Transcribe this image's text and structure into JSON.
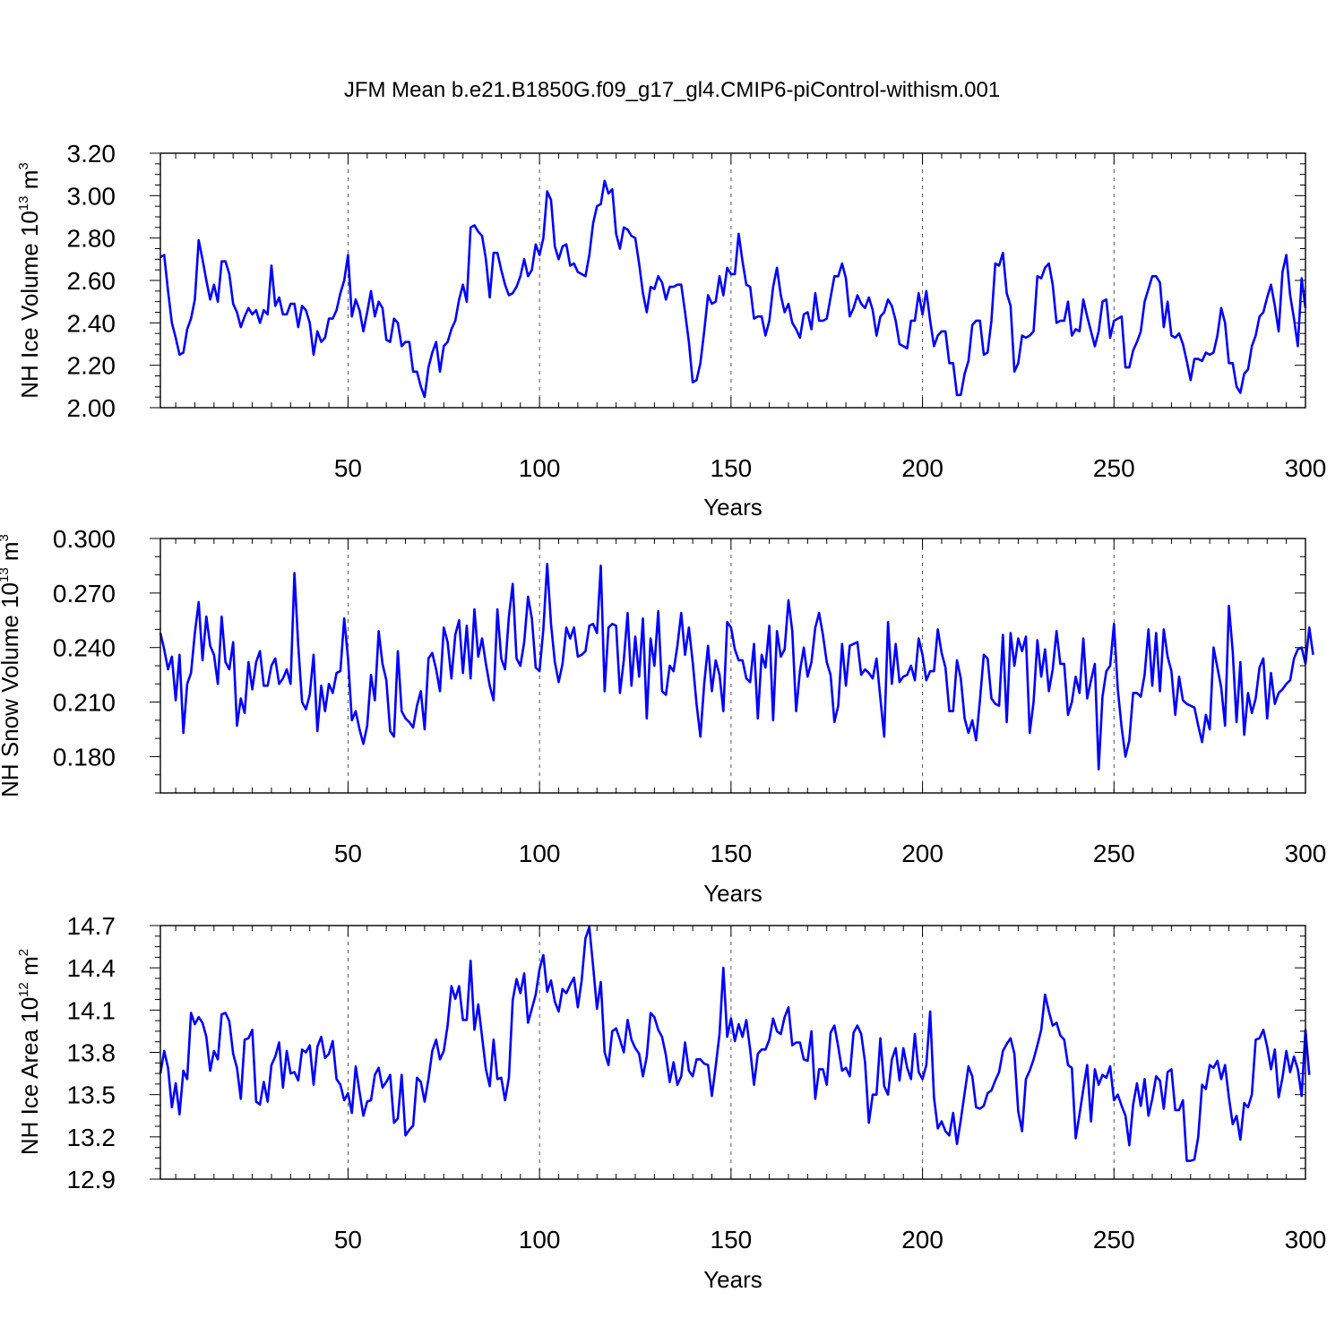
{
  "title": "JFM Mean b.e21.B1850G.f09_g17_gl4.CMIP6-piControl-withism.001",
  "series_color": "#0000ff",
  "chart_data": [
    {
      "type": "line",
      "name": "NH Ice Volume",
      "ylabel": {
        "main": "NH Ice Volume 10",
        "exp": "13",
        "unit": " m",
        "unit_exp": "3"
      },
      "xlabel": "Years",
      "xlim": [
        1,
        300
      ],
      "ylim": [
        2.0,
        3.2
      ],
      "x_ticks": [
        50,
        100,
        150,
        200,
        250,
        300
      ],
      "y_ticks": [
        "2.00",
        "2.20",
        "2.40",
        "2.60",
        "2.80",
        "3.00",
        "3.20"
      ],
      "y_tick_values": [
        2.0,
        2.2,
        2.4,
        2.6,
        2.8,
        3.0,
        3.2
      ],
      "x": "years 1-300",
      "values": [
        2.71,
        2.72,
        2.55,
        2.4,
        2.33,
        2.25,
        2.26,
        2.37,
        2.42,
        2.51,
        2.79,
        2.7,
        2.6,
        2.51,
        2.58,
        2.5,
        2.69,
        2.69,
        2.63,
        2.49,
        2.45,
        2.38,
        2.43,
        2.47,
        2.44,
        2.46,
        2.4,
        2.46,
        2.44,
        2.67,
        2.48,
        2.52,
        2.44,
        2.44,
        2.49,
        2.49,
        2.38,
        2.48,
        2.46,
        2.4,
        2.25,
        2.36,
        2.31,
        2.33,
        2.42,
        2.42,
        2.46,
        2.54,
        2.6,
        2.72,
        2.43,
        2.51,
        2.46,
        2.36,
        2.45,
        2.55,
        2.43,
        2.5,
        2.47,
        2.32,
        2.31,
        2.42,
        2.4,
        2.29,
        2.31,
        2.31,
        2.17,
        2.17,
        2.1,
        2.05,
        2.19,
        2.26,
        2.31,
        2.17,
        2.29,
        2.31,
        2.37,
        2.41,
        2.51,
        2.58,
        2.5,
        2.85,
        2.86,
        2.83,
        2.81,
        2.7,
        2.52,
        2.73,
        2.73,
        2.65,
        2.58,
        2.53,
        2.54,
        2.57,
        2.62,
        2.7,
        2.62,
        2.65,
        2.77,
        2.72,
        2.8,
        3.02,
        2.98,
        2.76,
        2.7,
        2.76,
        2.77,
        2.67,
        2.68,
        2.64,
        2.63,
        2.62,
        2.72,
        2.87,
        2.95,
        2.96,
        3.07,
        3.01,
        3.03,
        2.82,
        2.75,
        2.85,
        2.84,
        2.81,
        2.8,
        2.68,
        2.54,
        2.45,
        2.57,
        2.56,
        2.62,
        2.59,
        2.51,
        2.57,
        2.57,
        2.58,
        2.58,
        2.45,
        2.31,
        2.12,
        2.13,
        2.21,
        2.36,
        2.53,
        2.49,
        2.5,
        2.62,
        2.53,
        2.66,
        2.63,
        2.63,
        2.82,
        2.69,
        2.58,
        2.57,
        2.42,
        2.43,
        2.43,
        2.34,
        2.41,
        2.57,
        2.66,
        2.53,
        2.45,
        2.49,
        2.4,
        2.37,
        2.33,
        2.44,
        2.45,
        2.37,
        2.54,
        2.41,
        2.41,
        2.42,
        2.52,
        2.62,
        2.62,
        2.68,
        2.61,
        2.43,
        2.47,
        2.53,
        2.49,
        2.47,
        2.52,
        2.46,
        2.34,
        2.43,
        2.45,
        2.51,
        2.48,
        2.41,
        2.3,
        2.29,
        2.28,
        2.41,
        2.41,
        2.54,
        2.44,
        2.55,
        2.41,
        2.29,
        2.34,
        2.36,
        2.36,
        2.21,
        2.21,
        2.06,
        2.06,
        2.16,
        2.22,
        2.39,
        2.41,
        2.41,
        2.25,
        2.26,
        2.41,
        2.68,
        2.67,
        2.73,
        2.54,
        2.48,
        2.17,
        2.21,
        2.34,
        2.33,
        2.34,
        2.36,
        2.62,
        2.61,
        2.66,
        2.68,
        2.58,
        2.4,
        2.41,
        2.41,
        2.5,
        2.34,
        2.37,
        2.36,
        2.51,
        2.43,
        2.36,
        2.29,
        2.36,
        2.5,
        2.51,
        2.33,
        2.41,
        2.42,
        2.43,
        2.19,
        2.19,
        2.27,
        2.31,
        2.36,
        2.5,
        2.56,
        2.62,
        2.62,
        2.59,
        2.38,
        2.5,
        2.34,
        2.33,
        2.35,
        2.3,
        2.22,
        2.13,
        2.23,
        2.23,
        2.22,
        2.26,
        2.25,
        2.26,
        2.34,
        2.47,
        2.4,
        2.21,
        2.21,
        2.1,
        2.07,
        2.16,
        2.18,
        2.29,
        2.34,
        2.43,
        2.45,
        2.52,
        2.58,
        2.48,
        2.36,
        2.64,
        2.72,
        2.53,
        2.42,
        2.29,
        2.61,
        2.47
      ]
    },
    {
      "type": "line",
      "name": "NH Snow Volume",
      "ylabel": {
        "main": "NH Snow Volume 10",
        "exp": "13",
        "unit": " m",
        "unit_exp": "3"
      },
      "xlabel": "Years",
      "xlim": [
        1,
        300
      ],
      "ylim": [
        0.16,
        0.3
      ],
      "x_ticks": [
        50,
        100,
        150,
        200,
        250,
        300
      ],
      "y_ticks": [
        "0.180",
        "0.210",
        "0.240",
        "0.270",
        "0.300"
      ],
      "y_tick_values": [
        0.18,
        0.21,
        0.24,
        0.27,
        0.3
      ],
      "x": "years 1-300",
      "values": [
        0.248,
        0.239,
        0.228,
        0.235,
        0.211,
        0.236,
        0.193,
        0.22,
        0.226,
        0.248,
        0.265,
        0.233,
        0.257,
        0.241,
        0.236,
        0.22,
        0.257,
        0.232,
        0.228,
        0.243,
        0.197,
        0.212,
        0.204,
        0.232,
        0.217,
        0.232,
        0.238,
        0.219,
        0.219,
        0.23,
        0.234,
        0.22,
        0.223,
        0.228,
        0.22,
        0.281,
        0.241,
        0.21,
        0.206,
        0.214,
        0.236,
        0.194,
        0.219,
        0.205,
        0.22,
        0.215,
        0.226,
        0.227,
        0.256,
        0.234,
        0.2,
        0.205,
        0.195,
        0.187,
        0.197,
        0.225,
        0.211,
        0.249,
        0.231,
        0.222,
        0.194,
        0.191,
        0.238,
        0.205,
        0.201,
        0.199,
        0.196,
        0.208,
        0.216,
        0.195,
        0.234,
        0.237,
        0.228,
        0.216,
        0.251,
        0.243,
        0.223,
        0.247,
        0.255,
        0.226,
        0.252,
        0.223,
        0.261,
        0.235,
        0.245,
        0.231,
        0.219,
        0.211,
        0.261,
        0.234,
        0.228,
        0.257,
        0.275,
        0.234,
        0.23,
        0.243,
        0.268,
        0.256,
        0.229,
        0.227,
        0.25,
        0.286,
        0.253,
        0.232,
        0.221,
        0.231,
        0.251,
        0.245,
        0.251,
        0.235,
        0.236,
        0.238,
        0.252,
        0.253,
        0.248,
        0.285,
        0.216,
        0.251,
        0.253,
        0.252,
        0.215,
        0.233,
        0.259,
        0.219,
        0.246,
        0.224,
        0.256,
        0.201,
        0.245,
        0.23,
        0.26,
        0.216,
        0.214,
        0.23,
        0.227,
        0.241,
        0.259,
        0.236,
        0.251,
        0.232,
        0.209,
        0.191,
        0.22,
        0.241,
        0.216,
        0.233,
        0.225,
        0.205,
        0.254,
        0.251,
        0.239,
        0.233,
        0.233,
        0.223,
        0.221,
        0.242,
        0.201,
        0.236,
        0.229,
        0.252,
        0.2,
        0.249,
        0.235,
        0.239,
        0.266,
        0.249,
        0.205,
        0.227,
        0.24,
        0.224,
        0.232,
        0.251,
        0.259,
        0.247,
        0.232,
        0.225,
        0.199,
        0.208,
        0.242,
        0.219,
        0.241,
        0.242,
        0.243,
        0.225,
        0.228,
        0.226,
        0.223,
        0.234,
        0.212,
        0.191,
        0.254,
        0.22,
        0.242,
        0.221,
        0.224,
        0.225,
        0.23,
        0.222,
        0.245,
        0.236,
        0.222,
        0.227,
        0.227,
        0.25,
        0.237,
        0.229,
        0.205,
        0.205,
        0.233,
        0.223,
        0.201,
        0.193,
        0.2,
        0.189,
        0.211,
        0.236,
        0.234,
        0.212,
        0.209,
        0.208,
        0.247,
        0.199,
        0.248,
        0.23,
        0.245,
        0.238,
        0.246,
        0.193,
        0.21,
        0.244,
        0.224,
        0.239,
        0.216,
        0.228,
        0.249,
        0.231,
        0.231,
        0.203,
        0.21,
        0.224,
        0.215,
        0.245,
        0.212,
        0.222,
        0.231,
        0.173,
        0.213,
        0.227,
        0.23,
        0.253,
        0.217,
        0.196,
        0.18,
        0.189,
        0.215,
        0.215,
        0.213,
        0.225,
        0.25,
        0.219,
        0.248,
        0.216,
        0.25,
        0.235,
        0.227,
        0.203,
        0.224,
        0.211,
        0.209,
        0.208,
        0.207,
        0.197,
        0.188,
        0.203,
        0.195,
        0.24,
        0.229,
        0.218,
        0.197,
        0.263,
        0.238,
        0.199,
        0.232,
        0.192,
        0.215,
        0.204,
        0.212,
        0.229,
        0.234,
        0.201,
        0.226,
        0.209,
        0.215,
        0.217,
        0.22,
        0.222,
        0.234,
        0.239,
        0.24,
        0.231,
        0.251,
        0.236
      ]
    },
    {
      "type": "line",
      "name": "NH Ice Area",
      "ylabel": {
        "main": "NH Ice Area 10",
        "exp": "12",
        "unit": " m",
        "unit_exp": "2"
      },
      "xlabel": "Years",
      "xlim": [
        1,
        300
      ],
      "ylim": [
        12.9,
        14.7
      ],
      "x_ticks": [
        50,
        100,
        150,
        200,
        250,
        300
      ],
      "y_ticks": [
        "12.9",
        "13.2",
        "13.5",
        "13.8",
        "14.1",
        "14.4",
        "14.7"
      ],
      "y_tick_values": [
        12.9,
        13.2,
        13.5,
        13.8,
        14.1,
        14.4,
        14.7
      ],
      "x": "years 1-300",
      "values": [
        13.65,
        13.81,
        13.69,
        13.41,
        13.58,
        13.36,
        13.67,
        13.61,
        14.08,
        14.0,
        14.05,
        14.01,
        13.91,
        13.67,
        13.81,
        13.75,
        14.07,
        14.08,
        14.02,
        13.79,
        13.69,
        13.47,
        13.89,
        13.9,
        13.96,
        13.45,
        13.43,
        13.59,
        13.45,
        13.71,
        13.77,
        13.87,
        13.55,
        13.81,
        13.65,
        13.66,
        13.6,
        13.82,
        13.8,
        13.85,
        13.57,
        13.84,
        13.91,
        13.76,
        13.79,
        13.88,
        13.61,
        13.57,
        13.46,
        13.51,
        13.37,
        13.7,
        13.52,
        13.35,
        13.45,
        13.46,
        13.64,
        13.69,
        13.55,
        13.59,
        13.64,
        13.3,
        13.33,
        13.64,
        13.21,
        13.25,
        13.28,
        13.62,
        13.59,
        13.45,
        13.61,
        13.81,
        13.89,
        13.75,
        13.81,
        13.99,
        14.27,
        14.18,
        14.27,
        14.03,
        14.03,
        14.45,
        13.96,
        14.14,
        13.91,
        13.68,
        13.56,
        13.89,
        13.61,
        13.62,
        13.46,
        13.62,
        14.17,
        14.32,
        14.22,
        14.36,
        14.01,
        14.11,
        14.21,
        14.39,
        14.49,
        14.23,
        14.31,
        14.16,
        14.09,
        14.25,
        14.22,
        14.28,
        14.33,
        14.12,
        14.31,
        14.61,
        14.69,
        14.41,
        14.11,
        14.3,
        13.8,
        13.71,
        13.95,
        13.97,
        13.89,
        13.8,
        14.03,
        13.89,
        13.83,
        13.79,
        13.63,
        13.77,
        14.08,
        14.05,
        13.96,
        13.91,
        13.78,
        13.59,
        13.73,
        13.57,
        13.63,
        13.87,
        13.67,
        13.63,
        13.75,
        13.75,
        13.72,
        13.71,
        13.49,
        13.7,
        13.93,
        14.4,
        13.91,
        14.04,
        13.88,
        14.0,
        13.91,
        14.03,
        13.82,
        13.57,
        13.79,
        13.82,
        13.82,
        13.89,
        14.04,
        13.95,
        13.93,
        14.05,
        14.12,
        13.85,
        13.87,
        13.87,
        13.75,
        13.74,
        13.95,
        13.47,
        13.68,
        13.68,
        13.57,
        13.94,
        13.99,
        13.84,
        13.67,
        13.69,
        13.63,
        13.94,
        13.99,
        13.93,
        13.73,
        13.3,
        13.5,
        13.5,
        13.9,
        13.56,
        13.5,
        13.75,
        13.83,
        13.6,
        13.83,
        13.69,
        13.61,
        13.93,
        13.66,
        13.61,
        13.71,
        14.09,
        13.48,
        13.26,
        13.31,
        13.24,
        13.21,
        13.37,
        13.15,
        13.32,
        13.51,
        13.7,
        13.63,
        13.41,
        13.4,
        13.42,
        13.51,
        13.53,
        13.6,
        13.66,
        13.81,
        13.86,
        13.9,
        13.79,
        13.38,
        13.24,
        13.61,
        13.67,
        13.75,
        13.85,
        13.96,
        14.21,
        14.09,
        13.99,
        14.01,
        13.92,
        13.89,
        13.71,
        13.69,
        13.19,
        13.36,
        13.54,
        13.71,
        13.31,
        13.68,
        13.57,
        13.64,
        13.62,
        13.7,
        13.46,
        13.5,
        13.42,
        13.35,
        13.14,
        13.43,
        13.58,
        13.42,
        13.61,
        13.35,
        13.47,
        13.63,
        13.6,
        13.4,
        13.66,
        13.68,
        13.39,
        13.39,
        13.46,
        13.03,
        13.03,
        13.04,
        13.2,
        13.57,
        13.54,
        13.71,
        13.69,
        13.74,
        13.61,
        13.71,
        13.48,
        13.29,
        13.35,
        13.18,
        13.44,
        13.41,
        13.5,
        13.89,
        13.9,
        13.96,
        13.84,
        13.68,
        13.82,
        13.48,
        13.62,
        13.81,
        13.66,
        13.77,
        13.68,
        13.49,
        13.96,
        13.64
      ]
    }
  ]
}
